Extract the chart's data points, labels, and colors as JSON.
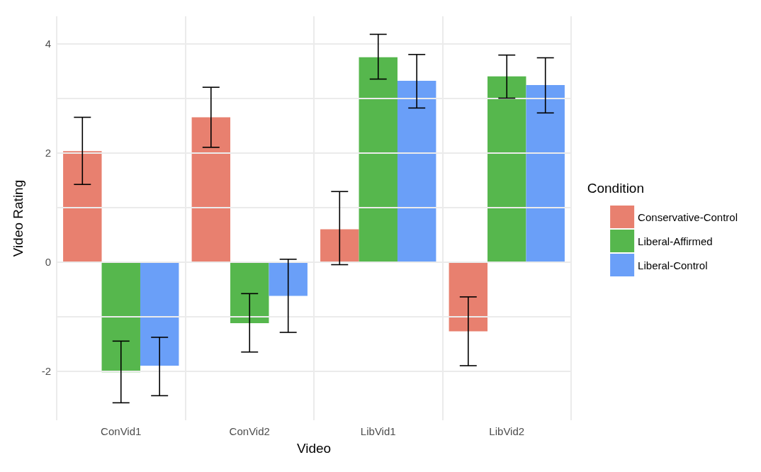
{
  "chart_data": {
    "type": "bar",
    "xlabel": "Video",
    "ylabel": "Video Rating",
    "legend_title": "Condition",
    "categories": [
      "ConVid1",
      "ConVid2",
      "LibVid1",
      "LibVid2"
    ],
    "series": [
      {
        "name": "Conservative-Control",
        "color": "#e8806f",
        "values": [
          2.03,
          2.65,
          0.6,
          -1.27
        ],
        "errors": [
          [
            1.42,
            2.65
          ],
          [
            2.1,
            3.2
          ],
          [
            -0.05,
            1.29
          ],
          [
            -1.9,
            -0.64
          ]
        ]
      },
      {
        "name": "Liberal-Affirmed",
        "color": "#56b74d",
        "values": [
          -2.02,
          -1.12,
          3.75,
          3.4
        ],
        "errors": [
          [
            -2.58,
            -1.45
          ],
          [
            -1.65,
            -0.58
          ],
          [
            3.35,
            4.17
          ],
          [
            3.0,
            3.79
          ]
        ]
      },
      {
        "name": "Liberal-Control",
        "color": "#6a9ff8",
        "values": [
          -1.9,
          -0.62,
          3.32,
          3.24
        ],
        "errors": [
          [
            -2.45,
            -1.38
          ],
          [
            -1.29,
            0.05
          ],
          [
            2.82,
            3.8
          ],
          [
            2.73,
            3.74
          ]
        ]
      }
    ],
    "ylim": [
      -2.9,
      4.5
    ],
    "yticks": [
      -2,
      {
        "value": -1,
        "label": null
      },
      0,
      {
        "value": 1,
        "label": null
      },
      2,
      {
        "value": 3,
        "label": null
      },
      4
    ],
    "grid": true,
    "legend": "right"
  }
}
